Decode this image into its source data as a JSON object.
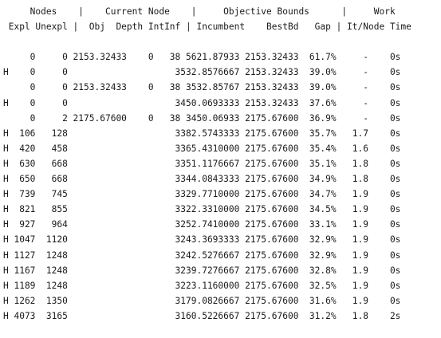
{
  "log_header": [
    "     Nodes    |    Current Node    |     Objective Bounds      |     Work",
    " Expl Unexpl |  Obj  Depth IntInf | Incumbent    BestBd   Gap | It/Node Time"
  ],
  "log_rows": [
    "",
    "     0     0 2153.32433    0   38 5621.87933 2153.32433  61.7%     -    0s",
    "H    0     0                    3532.8576667 2153.32433  39.0%     -    0s",
    "     0     0 2153.32433    0   38 3532.85767 2153.32433  39.0%     -    0s",
    "H    0     0                    3450.0693333 2153.32433  37.6%     -    0s",
    "     0     2 2175.67600    0   38 3450.06933 2175.67600  36.9%     -    0s",
    "H  106   128                    3382.5743333 2175.67600  35.7%   1.7    0s",
    "H  420   458                    3365.4310000 2175.67600  35.4%   1.6    0s",
    "H  630   668                    3351.1176667 2175.67600  35.1%   1.8    0s",
    "H  650   668                    3344.0843333 2175.67600  34.9%   1.8    0s",
    "H  739   745                    3329.7710000 2175.67600  34.7%   1.9    0s",
    "H  821   855                    3322.3310000 2175.67600  34.5%   1.9    0s",
    "H  927   964                    3252.7410000 2175.67600  33.1%   1.9    0s",
    "H 1047  1120                    3243.3693333 2175.67600  32.9%   1.9    0s",
    "H 1127  1248                    3242.5276667 2175.67600  32.9%   1.9    0s",
    "H 1167  1248                    3239.7276667 2175.67600  32.8%   1.9    0s",
    "H 1189  1248                    3223.1160000 2175.67600  32.5%   1.9    0s",
    "H 1262  1350                    3179.0826667 2175.67600  31.6%   1.9    0s",
    "H 4073  3165                    3160.5226667 2175.67600  31.2%   1.8    2s"
  ]
}
